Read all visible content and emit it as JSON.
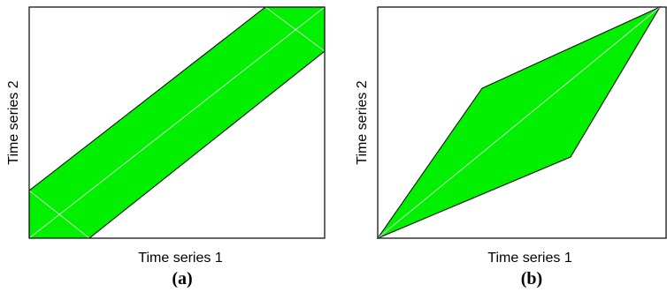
{
  "colors": {
    "band_fill": "#00f000",
    "frame": "#000000",
    "inner_line": "#cfe8cf"
  },
  "panels": [
    {
      "id": "a",
      "label": "(a)",
      "xlabel": "Time series 1",
      "ylabel": "Time series 2",
      "shape": "Sakoe-Chiba band"
    },
    {
      "id": "b",
      "label": "(b)",
      "xlabel": "Time series 1",
      "ylabel": "Time series 2",
      "shape": "Itakura parallelogram"
    }
  ]
}
